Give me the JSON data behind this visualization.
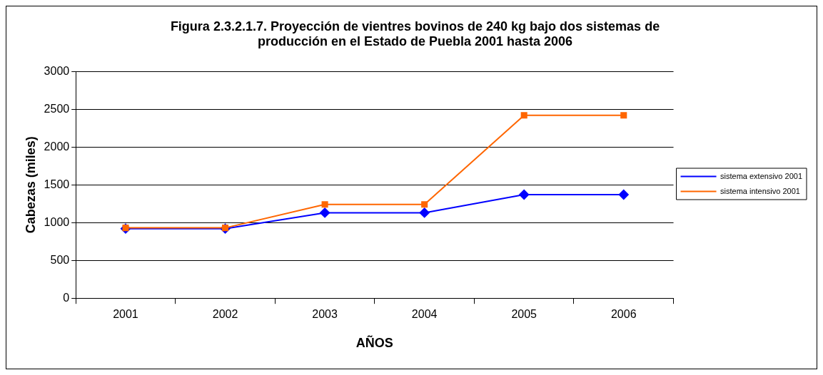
{
  "chart_data": {
    "type": "line",
    "title": "Figura 2.3.2.1.7. Proyección de vientres bovinos de 240 kg bajo dos sistemas de producción en el Estado de Puebla 2001 hasta 2006",
    "xlabel": "AÑOS",
    "ylabel": "Cabezas (miles)",
    "categories": [
      "2001",
      "2002",
      "2003",
      "2004",
      "2005",
      "2006"
    ],
    "series": [
      {
        "name": "sistema extensivo 2001",
        "color": "#0000ff",
        "marker": "diamond",
        "values": [
          920,
          920,
          1130,
          1130,
          1370,
          1370
        ]
      },
      {
        "name": "sistema intensivo 2001",
        "color": "#ff6600",
        "marker": "square",
        "values": [
          930,
          930,
          1240,
          1240,
          2420,
          2420
        ]
      }
    ],
    "ylim": [
      0,
      3000
    ],
    "yticks": [
      0,
      500,
      1000,
      1500,
      2000,
      2500,
      3000
    ],
    "grid": "y",
    "legend": "right"
  }
}
